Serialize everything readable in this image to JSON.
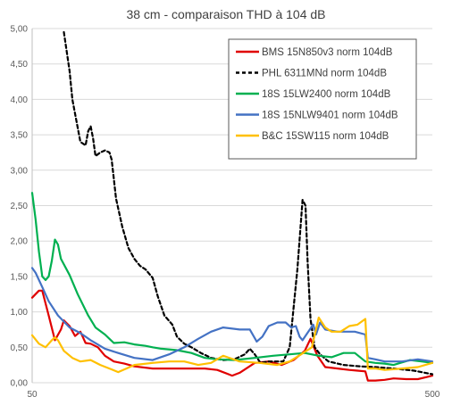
{
  "chart_data": {
    "type": "line",
    "title": "38 cm - comparaison THD à 104 dB",
    "xlabel": "",
    "ylabel": "",
    "x_scale": "log",
    "xlim": [
      50,
      500
    ],
    "ylim": [
      0,
      5
    ],
    "x_tick_labels": [
      "50",
      "500"
    ],
    "y_tick_labels": [
      "0,00",
      "0,50",
      "1,00",
      "1,50",
      "2,00",
      "2,50",
      "3,00",
      "3,50",
      "4,00",
      "4,50",
      "5,00"
    ],
    "grid": "horizontal",
    "legend_position": "top-right",
    "series": [
      {
        "name": "BMS 15N850v3 norm 104dB",
        "color": "#e00000",
        "dash": "solid",
        "points": [
          [
            50,
            1.2
          ],
          [
            52,
            1.3
          ],
          [
            53,
            1.3
          ],
          [
            55,
            0.95
          ],
          [
            57,
            0.6
          ],
          [
            59,
            0.75
          ],
          [
            60,
            0.88
          ],
          [
            62,
            0.8
          ],
          [
            64,
            0.66
          ],
          [
            66,
            0.72
          ],
          [
            68,
            0.56
          ],
          [
            70,
            0.55
          ],
          [
            73,
            0.5
          ],
          [
            76,
            0.38
          ],
          [
            80,
            0.3
          ],
          [
            85,
            0.27
          ],
          [
            90,
            0.23
          ],
          [
            100,
            0.2
          ],
          [
            110,
            0.2
          ],
          [
            120,
            0.2
          ],
          [
            135,
            0.2
          ],
          [
            145,
            0.18
          ],
          [
            158,
            0.1
          ],
          [
            165,
            0.14
          ],
          [
            180,
            0.28
          ],
          [
            195,
            0.3
          ],
          [
            210,
            0.25
          ],
          [
            225,
            0.32
          ],
          [
            240,
            0.45
          ],
          [
            248,
            0.62
          ],
          [
            258,
            0.38
          ],
          [
            270,
            0.22
          ],
          [
            290,
            0.2
          ],
          [
            310,
            0.18
          ],
          [
            325,
            0.17
          ],
          [
            340,
            0.16
          ],
          [
            345,
            0.03
          ],
          [
            360,
            0.03
          ],
          [
            380,
            0.04
          ],
          [
            400,
            0.06
          ],
          [
            430,
            0.05
          ],
          [
            460,
            0.05
          ],
          [
            485,
            0.08
          ],
          [
            500,
            0.1
          ]
        ]
      },
      {
        "name": "PHL 6311MNd norm 104dB",
        "color": "#000000",
        "dash": "dashed",
        "points": [
          [
            60,
            4.95
          ],
          [
            62,
            4.4
          ],
          [
            63,
            4.0
          ],
          [
            65,
            3.6
          ],
          [
            66,
            3.4
          ],
          [
            68,
            3.35
          ],
          [
            69,
            3.55
          ],
          [
            70,
            3.62
          ],
          [
            71,
            3.45
          ],
          [
            72,
            3.2
          ],
          [
            74,
            3.25
          ],
          [
            76,
            3.28
          ],
          [
            78,
            3.25
          ],
          [
            79,
            3.15
          ],
          [
            81,
            2.6
          ],
          [
            84,
            2.2
          ],
          [
            87,
            1.9
          ],
          [
            90,
            1.75
          ],
          [
            93,
            1.65
          ],
          [
            96,
            1.6
          ],
          [
            100,
            1.48
          ],
          [
            103,
            1.22
          ],
          [
            107,
            0.95
          ],
          [
            112,
            0.82
          ],
          [
            115,
            0.65
          ],
          [
            120,
            0.55
          ],
          [
            125,
            0.5
          ],
          [
            132,
            0.42
          ],
          [
            140,
            0.35
          ],
          [
            150,
            0.32
          ],
          [
            160,
            0.33
          ],
          [
            170,
            0.4
          ],
          [
            175,
            0.48
          ],
          [
            180,
            0.4
          ],
          [
            186,
            0.28
          ],
          [
            195,
            0.3
          ],
          [
            205,
            0.3
          ],
          [
            212,
            0.3
          ],
          [
            220,
            0.5
          ],
          [
            230,
            1.6
          ],
          [
            237,
            2.58
          ],
          [
            241,
            2.5
          ],
          [
            244,
            1.7
          ],
          [
            248,
            0.9
          ],
          [
            254,
            0.5
          ],
          [
            262,
            0.4
          ],
          [
            275,
            0.3
          ],
          [
            300,
            0.25
          ],
          [
            330,
            0.23
          ],
          [
            360,
            0.22
          ],
          [
            400,
            0.2
          ],
          [
            450,
            0.17
          ],
          [
            500,
            0.12
          ]
        ]
      },
      {
        "name": "18S 15LW2400 norm 104dB",
        "color": "#00b050",
        "dash": "solid",
        "points": [
          [
            50,
            2.68
          ],
          [
            51,
            2.3
          ],
          [
            52,
            1.85
          ],
          [
            53,
            1.5
          ],
          [
            54,
            1.45
          ],
          [
            55,
            1.5
          ],
          [
            56,
            1.72
          ],
          [
            57,
            2.02
          ],
          [
            58,
            1.95
          ],
          [
            59,
            1.75
          ],
          [
            62,
            1.52
          ],
          [
            65,
            1.25
          ],
          [
            69,
            0.95
          ],
          [
            72,
            0.78
          ],
          [
            76,
            0.68
          ],
          [
            80,
            0.56
          ],
          [
            85,
            0.57
          ],
          [
            90,
            0.54
          ],
          [
            96,
            0.52
          ],
          [
            100,
            0.5
          ],
          [
            105,
            0.48
          ],
          [
            115,
            0.46
          ],
          [
            125,
            0.42
          ],
          [
            135,
            0.35
          ],
          [
            145,
            0.33
          ],
          [
            160,
            0.32
          ],
          [
            180,
            0.35
          ],
          [
            200,
            0.38
          ],
          [
            220,
            0.4
          ],
          [
            240,
            0.42
          ],
          [
            260,
            0.38
          ],
          [
            280,
            0.36
          ],
          [
            300,
            0.42
          ],
          [
            320,
            0.42
          ],
          [
            340,
            0.3
          ],
          [
            360,
            0.28
          ],
          [
            380,
            0.27
          ],
          [
            400,
            0.25
          ],
          [
            440,
            0.32
          ],
          [
            470,
            0.3
          ],
          [
            500,
            0.28
          ]
        ]
      },
      {
        "name": "18S 15NLW9401 norm 104dB",
        "color": "#4472c4",
        "dash": "solid",
        "points": [
          [
            50,
            1.62
          ],
          [
            51,
            1.55
          ],
          [
            53,
            1.35
          ],
          [
            55,
            1.15
          ],
          [
            58,
            0.95
          ],
          [
            62,
            0.78
          ],
          [
            66,
            0.7
          ],
          [
            70,
            0.6
          ],
          [
            76,
            0.48
          ],
          [
            82,
            0.42
          ],
          [
            90,
            0.35
          ],
          [
            100,
            0.32
          ],
          [
            110,
            0.4
          ],
          [
            120,
            0.5
          ],
          [
            130,
            0.62
          ],
          [
            140,
            0.72
          ],
          [
            150,
            0.78
          ],
          [
            165,
            0.75
          ],
          [
            175,
            0.75
          ],
          [
            182,
            0.58
          ],
          [
            188,
            0.65
          ],
          [
            195,
            0.8
          ],
          [
            205,
            0.85
          ],
          [
            215,
            0.85
          ],
          [
            222,
            0.78
          ],
          [
            228,
            0.8
          ],
          [
            233,
            0.65
          ],
          [
            237,
            0.6
          ],
          [
            245,
            0.72
          ],
          [
            252,
            0.82
          ],
          [
            256,
            0.68
          ],
          [
            262,
            0.85
          ],
          [
            270,
            0.75
          ],
          [
            290,
            0.72
          ],
          [
            320,
            0.72
          ],
          [
            340,
            0.68
          ],
          [
            345,
            0.35
          ],
          [
            360,
            0.33
          ],
          [
            380,
            0.3
          ],
          [
            420,
            0.3
          ],
          [
            460,
            0.33
          ],
          [
            500,
            0.3
          ]
        ]
      },
      {
        "name": "B&C 15SW115 norm 104dB",
        "color": "#ffc000",
        "dash": "solid",
        "points": [
          [
            50,
            0.67
          ],
          [
            52,
            0.55
          ],
          [
            54,
            0.5
          ],
          [
            56,
            0.6
          ],
          [
            57,
            0.64
          ],
          [
            58,
            0.6
          ],
          [
            60,
            0.45
          ],
          [
            63,
            0.35
          ],
          [
            66,
            0.3
          ],
          [
            70,
            0.32
          ],
          [
            74,
            0.25
          ],
          [
            78,
            0.2
          ],
          [
            82,
            0.15
          ],
          [
            86,
            0.2
          ],
          [
            90,
            0.25
          ],
          [
            100,
            0.28
          ],
          [
            110,
            0.3
          ],
          [
            120,
            0.3
          ],
          [
            130,
            0.25
          ],
          [
            140,
            0.28
          ],
          [
            150,
            0.38
          ],
          [
            165,
            0.3
          ],
          [
            185,
            0.28
          ],
          [
            205,
            0.25
          ],
          [
            220,
            0.3
          ],
          [
            235,
            0.4
          ],
          [
            250,
            0.5
          ],
          [
            260,
            0.92
          ],
          [
            270,
            0.78
          ],
          [
            280,
            0.72
          ],
          [
            295,
            0.72
          ],
          [
            310,
            0.8
          ],
          [
            325,
            0.82
          ],
          [
            340,
            0.9
          ],
          [
            345,
            0.2
          ],
          [
            360,
            0.2
          ],
          [
            380,
            0.18
          ],
          [
            420,
            0.2
          ],
          [
            460,
            0.22
          ],
          [
            500,
            0.28
          ]
        ]
      }
    ]
  }
}
